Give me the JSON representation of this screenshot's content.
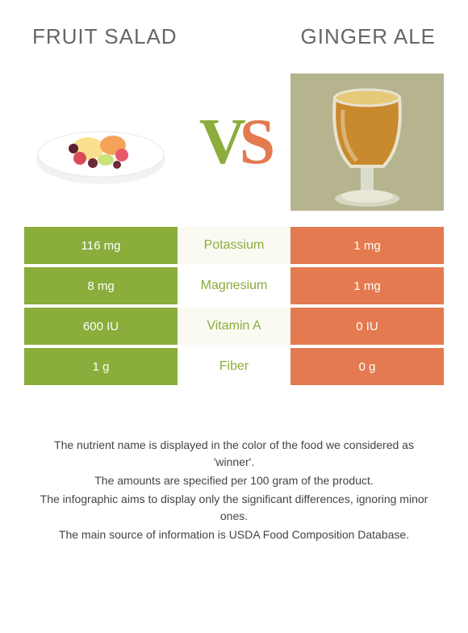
{
  "colors": {
    "left": "#8aad3c",
    "right": "#e47a50",
    "mid_bg_even": "#fafaf2",
    "mid_bg_odd": "#ffffff",
    "mid_text": "#8aad3c",
    "title_text": "#666666",
    "footer_text": "#444444"
  },
  "titles": {
    "left": "Fruit salad",
    "right": "Ginger ale"
  },
  "vs": {
    "v": "V",
    "s": "S"
  },
  "rows": [
    {
      "left": "116 mg",
      "mid": "Potassium",
      "right": "1 mg"
    },
    {
      "left": "8 mg",
      "mid": "Magnesium",
      "right": "1 mg"
    },
    {
      "left": "600 IU",
      "mid": "Vitamin A",
      "right": "0 IU"
    },
    {
      "left": "1 g",
      "mid": "Fiber",
      "right": "0 g"
    }
  ],
  "footer": [
    "The nutrient name is displayed in the color of the food we considered as 'winner'.",
    "The amounts are specified per 100 gram of the product.",
    "The infographic aims to display only the significant differences, ignoring minor ones.",
    "The main source of information is USDA Food Composition Database."
  ]
}
